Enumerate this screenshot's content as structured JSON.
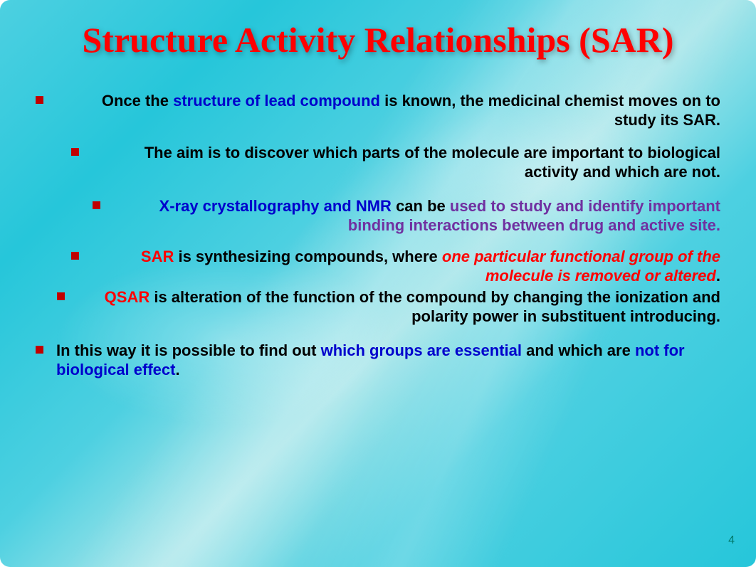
{
  "slide": {
    "title": "Structure Activity Relationships (SAR)",
    "page_number": "4",
    "title_color": "#ff0000",
    "background_gradient": [
      "#4dd0e1",
      "#26c6da",
      "#a8e6ea"
    ],
    "body_font_size": 22,
    "title_font_size": 50,
    "bullets": [
      {
        "indent": 0,
        "align": "right",
        "bullet_color": "#c00000",
        "segments": [
          {
            "text": "Once the ",
            "color": "black"
          },
          {
            "text": "structure of lead compound",
            "color": "blue"
          },
          {
            "text": " is known, the medicinal chemist moves on to study its SAR.",
            "color": "black"
          }
        ]
      },
      {
        "indent": 50,
        "align": "right",
        "bullet_color": "#c00000",
        "segments": [
          {
            "text": "The aim is to discover which parts of the molecule are important to biological activity and which are not.",
            "color": "black"
          }
        ]
      },
      {
        "indent": 80,
        "align": "right",
        "bullet_color": "#c00000",
        "segments": [
          {
            "text": "X-ray crystallography and NMR",
            "color": "blue"
          },
          {
            "text": " can be ",
            "color": "black"
          },
          {
            "text": "used to study and identify important binding interactions between drug and active site.",
            "color": "purple"
          }
        ]
      },
      {
        "indent": 50,
        "align": "right",
        "bullet_color": "#c00000",
        "segments": [
          {
            "text": "SAR",
            "color": "red"
          },
          {
            "text": " is synthesizing compounds, where ",
            "color": "black"
          },
          {
            "text": "one particular functional group of the molecule is removed or altered",
            "color": "red-italic"
          },
          {
            "text": ".",
            "color": "black"
          }
        ]
      },
      {
        "indent": 30,
        "align": "right",
        "bullet_color": "#c00000",
        "segments": [
          {
            "text": "QSAR",
            "color": "red"
          },
          {
            "text": " is alteration of the function of the compound by changing the ionization and polarity power in substituent introducing.",
            "color": "black"
          }
        ]
      },
      {
        "indent": 0,
        "align": "left",
        "bullet_color": "#c00000",
        "segments": [
          {
            "text": "In this way it is possible to find out ",
            "color": "black"
          },
          {
            "text": "which groups are essential",
            "color": "blue"
          },
          {
            "text": " and which are ",
            "color": "black"
          },
          {
            "text": "not for biological effect",
            "color": "blue"
          },
          {
            "text": ".",
            "color": "black"
          }
        ]
      }
    ]
  }
}
